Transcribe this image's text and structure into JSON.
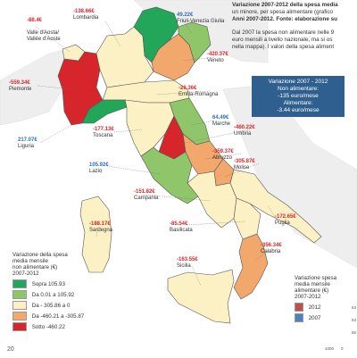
{
  "header": {
    "line1": "Variazione 2007-2012 della spesa media",
    "line2": "un minore, per spesa alimentare (grafico",
    "line3": "Anni 2007-2012. Fonte: elaborazione su",
    "para1": "Dal 2007 la spesa non alimentare nelle 9",
    "para2": "euro mensili a livello nazionale, ma si os",
    "para3": "nella mappa). I valori della spesa aliment"
  },
  "info_box": {
    "title": "Variazione 2007 - 2012",
    "line1": "Non alimentare:",
    "line2": "-135 euro/mese",
    "line3": "Alimentare:",
    "line4": "-3.44 euro/mese"
  },
  "colors": {
    "sopra_105_93": "#21a65a",
    "da_0_01_a_105_92": "#8fc66a",
    "da_0_a_minus_305_86": "#fbf1c4",
    "da_minus_305_87_a_minus_460_21": "#f2a76c",
    "sotto_minus_460_22": "#d7262b",
    "sea": "#ffffff",
    "foreign_land": "#eeeeee",
    "bar_2012": "#c0504d",
    "bar_2007": "#4f81bd"
  },
  "regions": [
    {
      "name": "Valle d'Aosta/\nVallée d'Aoste",
      "value": "-88.4€"
    },
    {
      "name": "Lombardia",
      "value": "-138.66€"
    },
    {
      "name": "Friuli-Venezia Giulia",
      "value": "49.22€"
    },
    {
      "name": "Veneto",
      "value": "-420.37€"
    },
    {
      "name": "Piemonte",
      "value": "-559.34€"
    },
    {
      "name": "Emilia-Romagna",
      "value": "-26.36€"
    },
    {
      "name": "Liguria",
      "value": "217.07€"
    },
    {
      "name": "Marche",
      "value": "64.49€"
    },
    {
      "name": "Toscana",
      "value": "-177.13€"
    },
    {
      "name": "Umbria",
      "value": "-460.22€"
    },
    {
      "name": "Abruzzo",
      "value": "-359.37€"
    },
    {
      "name": "Molise",
      "value": "-305.87€"
    },
    {
      "name": "Lazio",
      "value": "105.92€"
    },
    {
      "name": "Campania",
      "value": "-151.82€"
    },
    {
      "name": "Puglia",
      "value": "-172.65€"
    },
    {
      "name": "Sardegna",
      "value": "-188.17€"
    },
    {
      "name": "Basilicata",
      "value": "-85.54€"
    },
    {
      "name": "Calabria",
      "value": "-356.34€"
    },
    {
      "name": "Sicilia",
      "value": "-163.55€"
    }
  ],
  "legend_left": {
    "title1": "Variazione della spesa",
    "title2": "media mensile",
    "title3": "non alimentare (€)",
    "title4": "2007-2012",
    "items": [
      {
        "label": "Sopra 105.93"
      },
      {
        "label": "Da 0.01 a 105.92"
      },
      {
        "label": "Da - 305.86 a 0"
      },
      {
        "label": "Da -460.21 a -305.87"
      },
      {
        "label": "Sotto -460.22"
      }
    ]
  },
  "legend_right": {
    "title1": "Variazione spesa",
    "title2": "media mensile",
    "title3": "alimentare (€)",
    "title4": "2007-2012",
    "items": [
      {
        "label": "2012"
      },
      {
        "label": "2007"
      }
    ]
  },
  "axis": {
    "tick_1000": "1000",
    "tick_0": "0",
    "tick_63a": "63",
    "tick_63b": "63",
    "tick_65": "65"
  },
  "page_number": "20"
}
